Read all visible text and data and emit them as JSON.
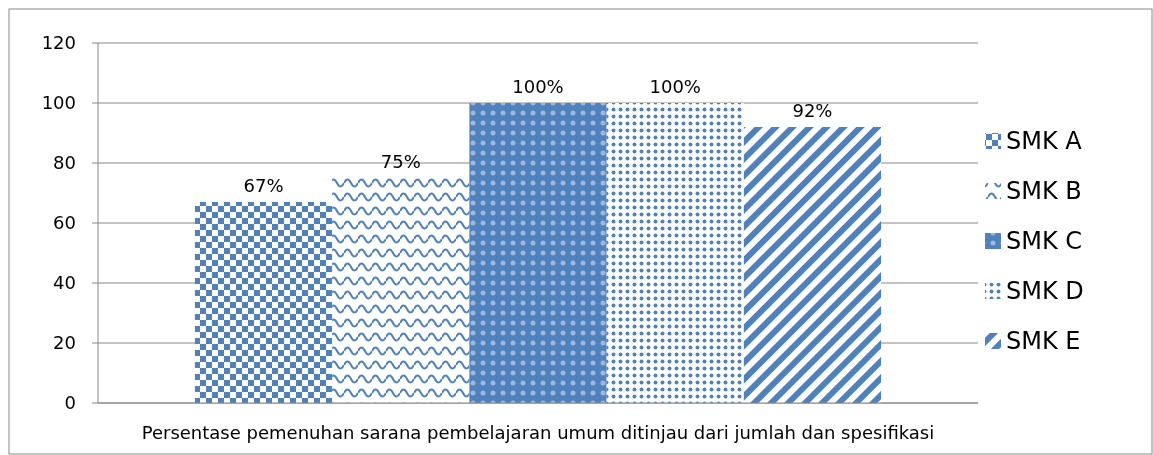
{
  "chart_data": {
    "type": "bar",
    "categories": [
      "Persentase pemenuhan sarana pembelajaran umum ditinjau dari jumlah dan spesifikasi"
    ],
    "series": [
      {
        "name": "SMK A",
        "color": "#4f81bd",
        "values": [
          67
        ],
        "value_labels": [
          "67%"
        ]
      },
      {
        "name": "SMK B",
        "color": "#4f81bd",
        "values": [
          75
        ],
        "value_labels": [
          "75%"
        ]
      },
      {
        "name": "SMK C",
        "color": "#4f81bd",
        "values": [
          100
        ],
        "value_labels": [
          "100%"
        ]
      },
      {
        "name": "SMK D",
        "color": "#4f81bd",
        "values": [
          100
        ],
        "value_labels": [
          "100%"
        ]
      },
      {
        "name": "SMK E",
        "color": "#4f81bd",
        "values": [
          92
        ],
        "value_labels": [
          "92%"
        ]
      }
    ],
    "ylim": [
      0,
      120
    ],
    "yticks": [
      0,
      20,
      40,
      60,
      80,
      100,
      120
    ],
    "grid": "y",
    "legend": "right"
  }
}
